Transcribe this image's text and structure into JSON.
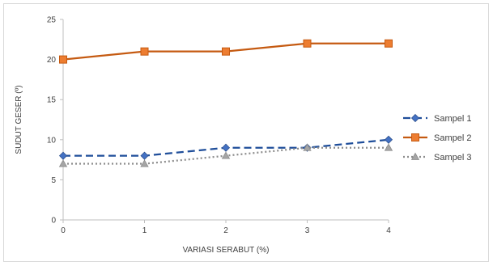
{
  "chart_data": {
    "type": "line",
    "title": "",
    "xlabel": "VARIASI SERABUT (%)",
    "ylabel": "SUDUT GESER (º)",
    "x": [
      0,
      1,
      2,
      3,
      4
    ],
    "xticks": [
      "0",
      "1",
      "2",
      "3",
      "4"
    ],
    "yticks": [
      "0",
      "5",
      "10",
      "15",
      "20",
      "25"
    ],
    "ylim": [
      0,
      25
    ],
    "grid": false,
    "legend_position": "right",
    "series": [
      {
        "name": "Sampel 1",
        "values": [
          8,
          8,
          9,
          9,
          10
        ],
        "color": "#1f4e9a",
        "style": "dashed",
        "marker": "diamond"
      },
      {
        "name": "Sampel 2",
        "values": [
          20,
          21,
          21,
          22,
          22
        ],
        "color": "#c55a11",
        "style": "solid",
        "marker": "square",
        "marker_fill": "#ed7d31"
      },
      {
        "name": "Sampel 3",
        "values": [
          7,
          7,
          8,
          9,
          9
        ],
        "color": "#8c8c8c",
        "style": "dotted",
        "marker": "triangle"
      }
    ]
  }
}
